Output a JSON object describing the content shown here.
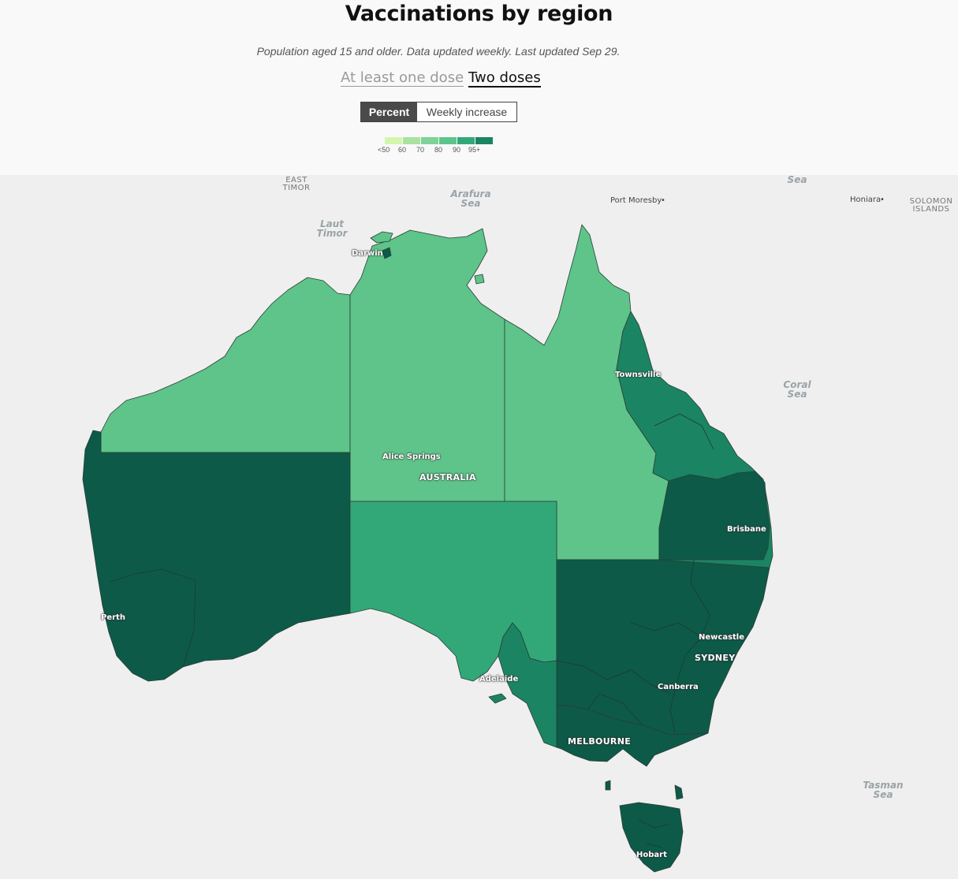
{
  "header": {
    "title": "Vaccinations by region",
    "subtitle": "Population aged 15 and older. Data updated weekly. Last updated Sep 29.",
    "tabs": [
      {
        "label": "At least one dose",
        "active": false
      },
      {
        "label": "Two doses",
        "active": true
      }
    ],
    "toggle": [
      {
        "label": "Percent",
        "active": true
      },
      {
        "label": "Weekly increase",
        "active": false
      }
    ]
  },
  "legend": {
    "labels": [
      "<50",
      "60",
      "70",
      "80",
      "90",
      "95+"
    ],
    "colors": [
      "#d4f5ad",
      "#a9e2a2",
      "#7fd396",
      "#5ec48a",
      "#32a879",
      "#1b8463"
    ]
  },
  "map": {
    "colors": {
      "land_outside": "#efefef",
      "wa_north": "#5ec48a",
      "nt": "#5ec48a",
      "qld_west": "#5ec48a",
      "qld_coast": "#1b8463",
      "qld_se": "#0d5a49",
      "wa_south": "#0d5a49",
      "sa_north": "#32a879",
      "sa_east": "#1b8463",
      "nsw": "#0d5a49",
      "vic": "#0d5a49",
      "tas": "#0d5a49",
      "darwin": "#0d5a49"
    },
    "cities": {
      "darwin": "Darwin",
      "townsville": "Townsville",
      "alice_springs": "Alice Springs",
      "australia": "AUSTRALIA",
      "brisbane": "Brisbane",
      "perth": "Perth",
      "newcastle": "Newcastle",
      "sydney": "SYDNEY",
      "adelaide": "Adelaide",
      "canberra": "Canberra",
      "melbourne": "MELBOURNE",
      "hobart": "Hobart"
    },
    "external": {
      "east_timor": "EAST\nTIMOR",
      "arafura_sea": "Arafura\nSea",
      "port_moresby": "Port Moresby",
      "sea_top": "Sea",
      "honiara": "Honiara",
      "solomon_islands": "SOLOMON\nISLANDS",
      "laut_timor": "Laut\nTimor",
      "coral_sea": "Coral\nSea",
      "tasman_sea": "Tasman\nSea"
    }
  }
}
